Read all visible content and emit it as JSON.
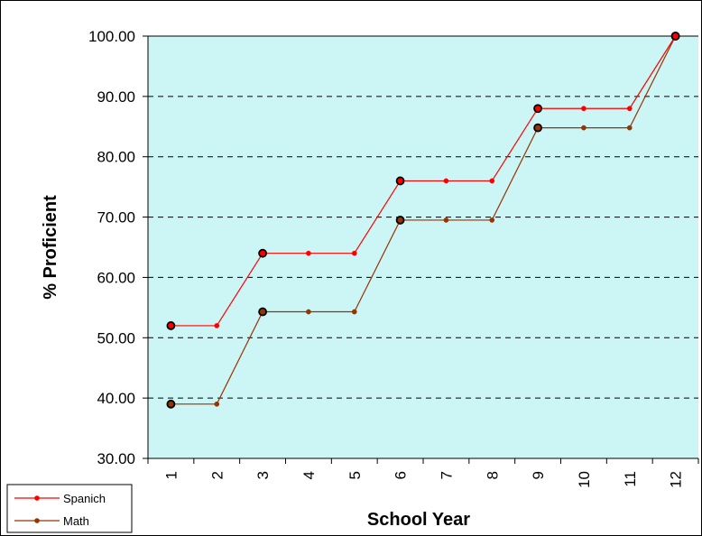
{
  "chart_data": {
    "type": "line",
    "title": "",
    "xlabel": "School Year",
    "ylabel": "% Proficient",
    "categories": [
      "1",
      "2",
      "3",
      "4",
      "5",
      "6",
      "7",
      "8",
      "9",
      "10",
      "11",
      "12"
    ],
    "ylim": [
      30,
      100
    ],
    "yticks": [
      "30.00",
      "40.00",
      "50.00",
      "60.00",
      "70.00",
      "80.00",
      "90.00",
      "100.00"
    ],
    "grid": "horizontal dashed",
    "plot_background": "#ccf5f5",
    "legend_position": "bottom-left",
    "series": [
      {
        "name": "Spanich",
        "color": "#ff0000",
        "values": [
          52,
          52,
          64,
          64,
          64,
          76,
          76,
          76,
          88,
          88,
          88,
          100
        ],
        "highlighted_indices": [
          0,
          2,
          5,
          8,
          11
        ]
      },
      {
        "name": "Math",
        "color": "#993300",
        "values": [
          39,
          39,
          54.3,
          54.3,
          54.3,
          69.5,
          69.5,
          69.5,
          84.8,
          84.8,
          84.8,
          100
        ],
        "highlighted_indices": [
          0,
          2,
          5,
          8,
          11
        ]
      }
    ]
  }
}
